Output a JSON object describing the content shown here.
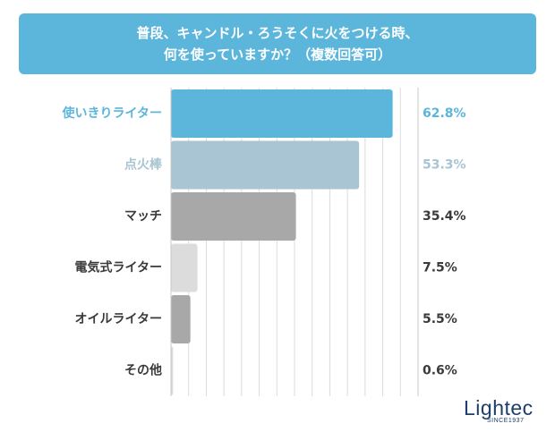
{
  "title": {
    "line1": "普段、キャンドル・ろうそくに火をつける時、",
    "line2": "何を使っていますか？（複数回答可）"
  },
  "chart_data": {
    "type": "bar",
    "orientation": "horizontal",
    "categories": [
      "使いきりライター",
      "点火棒",
      "マッチ",
      "電気式ライター",
      "オイルライター",
      "その他"
    ],
    "values": [
      62.8,
      53.3,
      35.4,
      7.5,
      5.5,
      0.6
    ],
    "value_labels": [
      "62.8%",
      "53.3%",
      "35.4%",
      "7.5%",
      "5.5%",
      "0.6%"
    ],
    "bar_colors": [
      "#5cb6dc",
      "#a9c4d2",
      "#a8a8a8",
      "#dcdcdc",
      "#a8a8a8",
      "#dcdcdc"
    ],
    "label_colors": [
      "#5cb6dc",
      "#a9c4d2",
      "#3a3a3a",
      "#3a3a3a",
      "#3a3a3a",
      "#3a3a3a"
    ],
    "xlim": [
      0,
      70
    ],
    "grid": true
  },
  "brand": {
    "name": "Lightec",
    "since": "SINCE1937"
  }
}
